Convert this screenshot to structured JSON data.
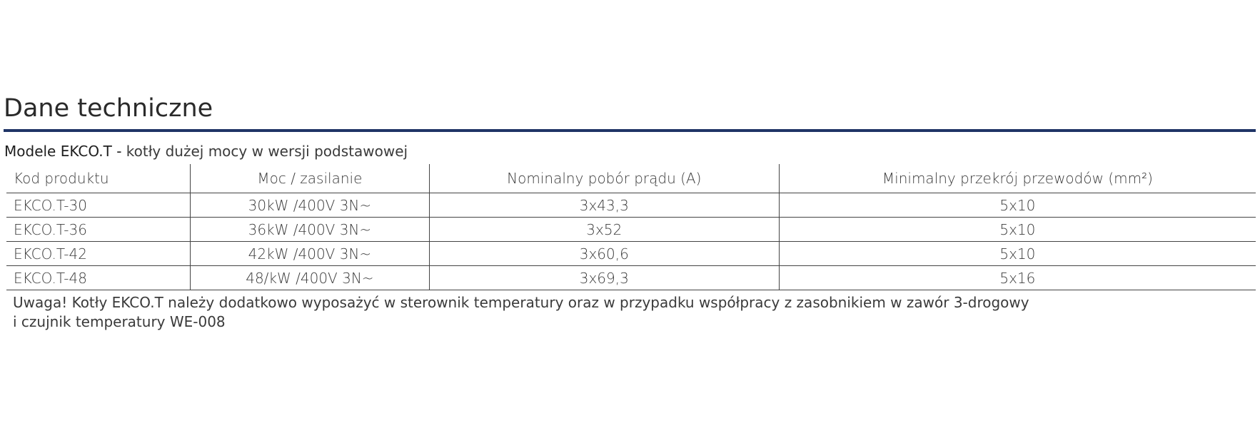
{
  "header": {
    "title": "Dane techniczne"
  },
  "subtitle": {
    "model": "Modele EKCO.T -",
    "text": "kotły dużej mocy w wersji podstawowej"
  },
  "table": {
    "columns": [
      "Kod produktu",
      "Moc / zasilanie",
      "Nominalny pobór prądu (A)",
      "Minimalny przekrój przewodów (mm²)"
    ],
    "rows": [
      [
        "EKCO.T-30",
        "30kW /400V 3N~",
        "3x43,3",
        "5x10"
      ],
      [
        "EKCO.T-36",
        "36kW /400V 3N~",
        "3x52",
        "5x10"
      ],
      [
        "EKCO.T-42",
        "42kW /400V 3N~",
        "3x60,6",
        "5x10"
      ],
      [
        "EKCO.T-48",
        "48/kW /400V 3N~",
        "3x69,3",
        "5x16"
      ]
    ]
  },
  "note": [
    "Uwaga! Kotły EKCO.T należy dodatkowo wyposażyć w sterownik temperatury oraz w przypadku współpracy z zasobnikiem w zawór 3-drogowy",
    "i czujnik temperatury WE-008"
  ]
}
